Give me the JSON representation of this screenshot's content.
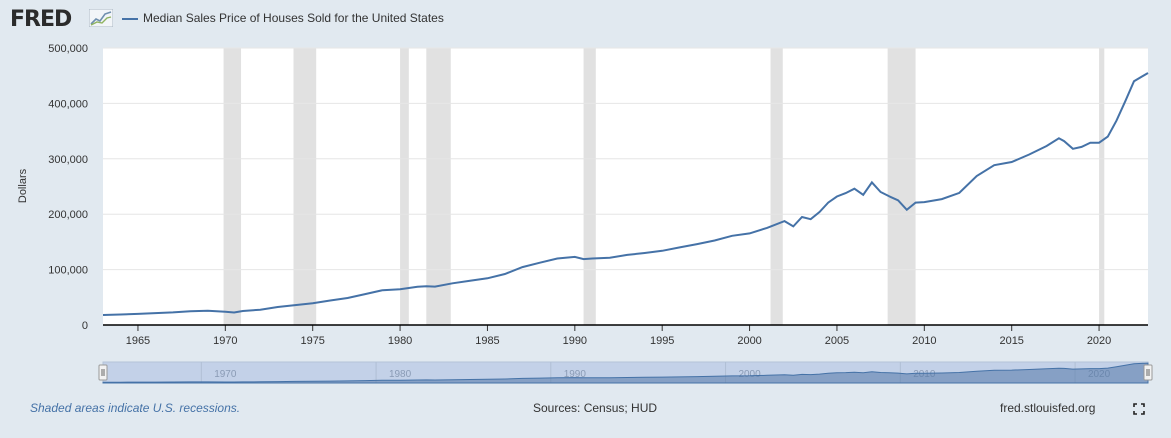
{
  "brand": {
    "logo_text": "FRED",
    "site": "fred.stlouisfed.org"
  },
  "footer": {
    "note": "Shaded areas indicate U.S. recessions.",
    "sources": "Sources: Census; HUD"
  },
  "colors": {
    "series": "#4572a7",
    "recession": "#e1e1e1",
    "navigator_fill": "#c3d1e8",
    "background": "#e1e9f0"
  },
  "icons": {
    "logo_graph": "trend-graph-icon",
    "fullscreen": "fullscreen-icon"
  },
  "chart_data": {
    "type": "line",
    "title": "",
    "ylabel": "Dollars",
    "xlabel": "",
    "xlim": [
      1963,
      2022.8
    ],
    "ylim": [
      0,
      500000
    ],
    "yticks": [
      0,
      100000,
      200000,
      300000,
      400000,
      500000
    ],
    "ytick_labels": [
      "0",
      "100,000",
      "200,000",
      "300,000",
      "400,000",
      "500,000"
    ],
    "xticks": [
      1965,
      1970,
      1975,
      1980,
      1985,
      1990,
      1995,
      2000,
      2005,
      2010,
      2015,
      2020
    ],
    "navigator_ticks": [
      1970,
      1980,
      1990,
      2000,
      2010,
      2020
    ],
    "grid": true,
    "legend": "top-left",
    "recessions": [
      [
        1969.9,
        1970.9
      ],
      [
        1973.9,
        1975.2
      ],
      [
        1980.0,
        1980.5
      ],
      [
        1981.5,
        1982.9
      ],
      [
        1990.5,
        1991.2
      ],
      [
        2001.2,
        2001.9
      ],
      [
        2007.9,
        2009.5
      ],
      [
        2020.0,
        2020.3
      ]
    ],
    "series": [
      {
        "name": "Median Sales Price of Houses Sold for the United States",
        "x": [
          1963.0,
          1964.0,
          1965.0,
          1966.0,
          1967.0,
          1968.0,
          1969.0,
          1970.0,
          1970.5,
          1971.0,
          1972.0,
          1973.0,
          1974.0,
          1975.0,
          1976.0,
          1977.0,
          1978.0,
          1979.0,
          1980.0,
          1981.0,
          1981.5,
          1982.0,
          1983.0,
          1984.0,
          1985.0,
          1986.0,
          1987.0,
          1988.0,
          1989.0,
          1990.0,
          1990.5,
          1991.0,
          1992.0,
          1993.0,
          1994.0,
          1995.0,
          1996.0,
          1997.0,
          1998.0,
          1999.0,
          2000.0,
          2001.0,
          2002.0,
          2002.5,
          2003.0,
          2003.5,
          2004.0,
          2004.5,
          2005.0,
          2005.5,
          2006.0,
          2006.5,
          2007.0,
          2007.5,
          2008.0,
          2008.5,
          2009.0,
          2009.5,
          2010.0,
          2011.0,
          2012.0,
          2013.0,
          2014.0,
          2015.0,
          2016.0,
          2017.0,
          2017.7,
          2018.0,
          2018.5,
          2019.0,
          2019.5,
          2020.0,
          2020.5,
          2021.0,
          2021.5,
          2022.0,
          2022.8
        ],
        "values": [
          18000,
          19000,
          20000,
          21400,
          22700,
          24700,
          25600,
          23900,
          22500,
          25200,
          27600,
          32500,
          35900,
          39300,
          44200,
          48800,
          55700,
          62900,
          64600,
          68900,
          70000,
          69300,
          75300,
          79900,
          84300,
          92000,
          104500,
          112500,
          120000,
          122900,
          119000,
          120000,
          121500,
          126500,
          130000,
          133900,
          140000,
          146000,
          152500,
          161000,
          165300,
          175200,
          187600,
          178000,
          195000,
          191000,
          204000,
          221000,
          232000,
          238000,
          246000,
          235000,
          257400,
          240000,
          232100,
          225000,
          208000,
          221000,
          221800,
          227200,
          238400,
          268900,
          288500,
          294200,
          307800,
          323100,
          337000,
          332000,
          318000,
          321500,
          329000,
          329000,
          340000,
          369000,
          404000,
          440000,
          454900
        ]
      }
    ]
  }
}
